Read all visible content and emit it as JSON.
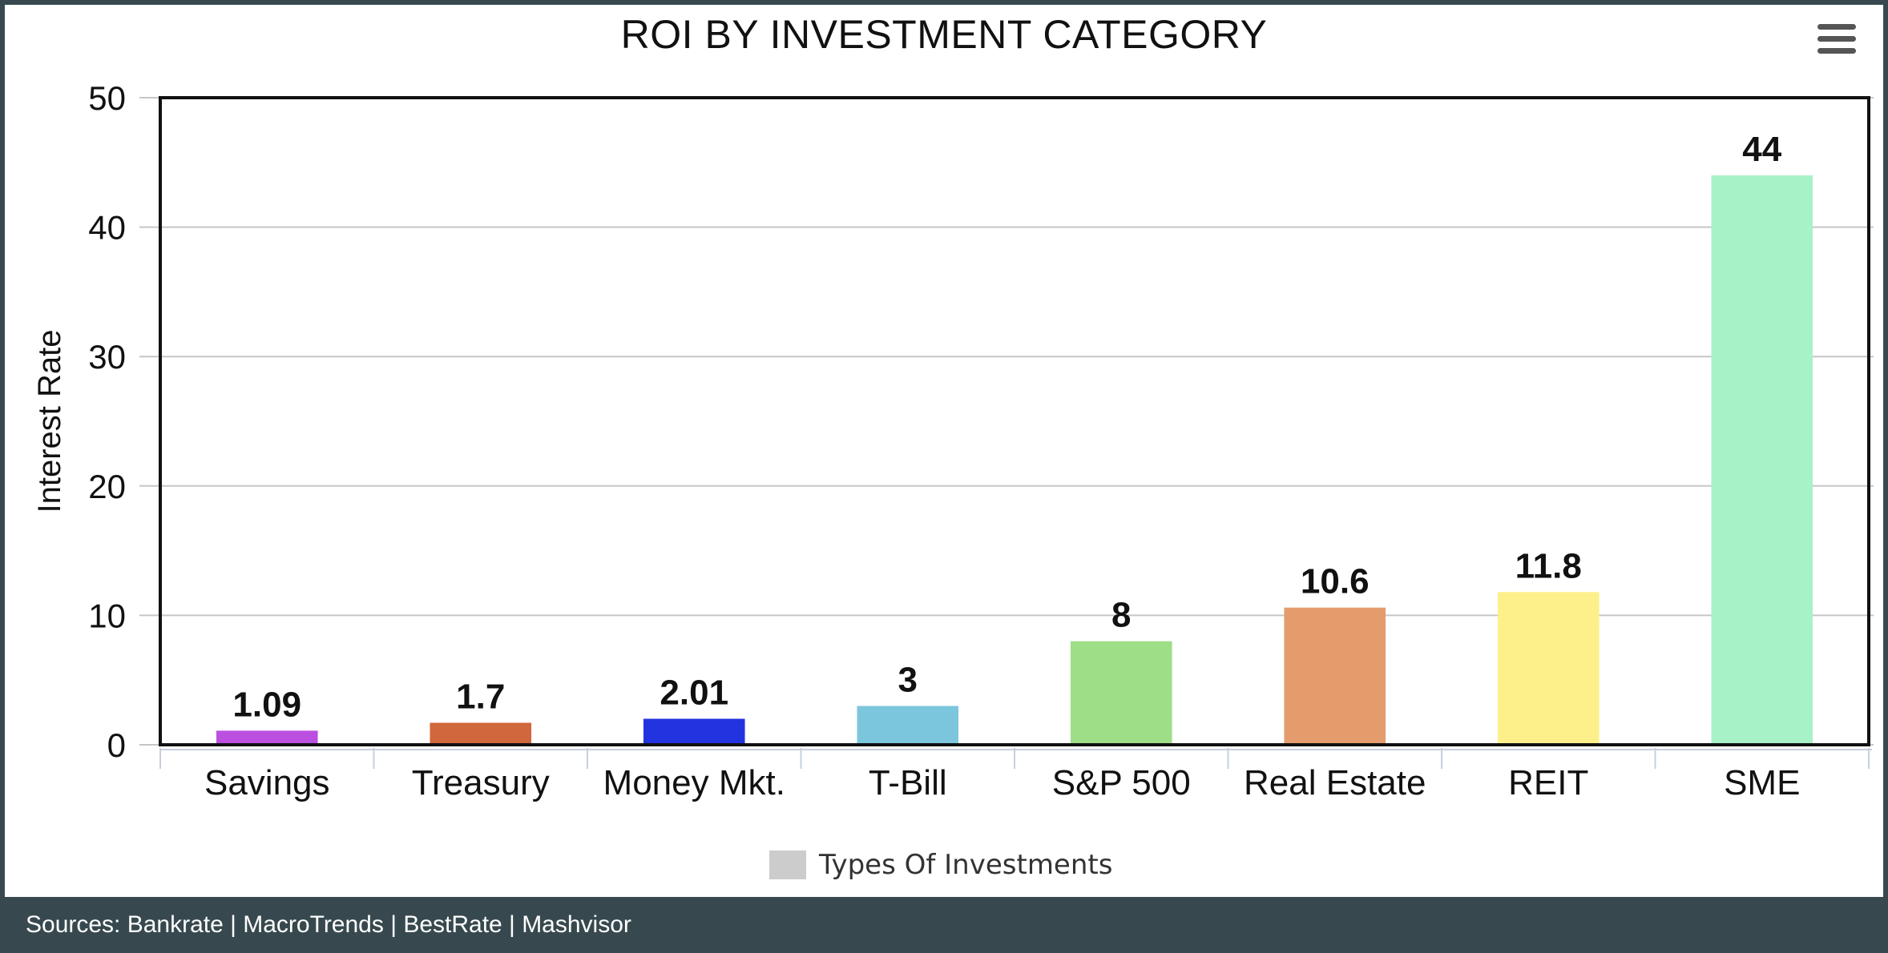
{
  "chart_data": {
    "type": "bar",
    "title": "ROI BY INVESTMENT CATEGORY",
    "ylabel": "Interest Rate",
    "xlabel": "",
    "categories": [
      "Savings",
      "Treasury",
      "Money Mkt.",
      "T-Bill",
      "S&P 500",
      "Real Estate",
      "REIT",
      "SME"
    ],
    "values": [
      1.09,
      1.7,
      2.01,
      3,
      8,
      10.6,
      11.8,
      44
    ],
    "data_labels": [
      "1.09",
      "1.7",
      "2.01",
      "3",
      "8",
      "10.6",
      "11.8",
      "44"
    ],
    "colors": [
      "#bb4fe0",
      "#d0673d",
      "#2233e0",
      "#7cc6dd",
      "#9ede86",
      "#e59c6c",
      "#fdf08b",
      "#a8f2c8"
    ],
    "ylim": [
      0,
      50
    ],
    "yticks": [
      0,
      10,
      20,
      30,
      40,
      50
    ],
    "grid": true,
    "legend": {
      "label": "Types Of Investments",
      "color": "#cccccc",
      "position": "bottom-center"
    }
  },
  "toolbar": {
    "menu_icon": "hamburger-menu-icon"
  },
  "footer": {
    "sources": "Sources: Bankrate | MacroTrends | BestRate | Mashvisor"
  }
}
